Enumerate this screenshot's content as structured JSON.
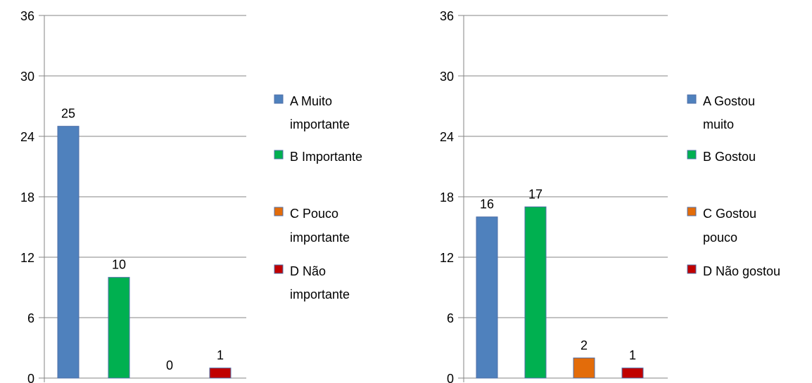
{
  "chart_data": [
    {
      "type": "bar",
      "categories": [
        "A",
        "B",
        "C",
        "D"
      ],
      "values": [
        25,
        10,
        0,
        1
      ],
      "colors": [
        "#4F81BD",
        "#00B050",
        "#E36C0A",
        "#C00000"
      ],
      "ylim": [
        0,
        36
      ],
      "yticks": [
        "0",
        "6",
        "12",
        "18",
        "24",
        "30",
        "36"
      ],
      "grid": true,
      "legend_position": "right",
      "legend": [
        {
          "lines": [
            "A  Muito",
            "importante"
          ]
        },
        {
          "lines": [
            "B  Importante"
          ]
        },
        {
          "lines": [
            "C  Pouco",
            "importante"
          ]
        },
        {
          "lines": [
            "D  Não",
            "importante"
          ]
        }
      ]
    },
    {
      "type": "bar",
      "categories": [
        "A",
        "B",
        "C",
        "D"
      ],
      "values": [
        16,
        17,
        2,
        1
      ],
      "colors": [
        "#4F81BD",
        "#00B050",
        "#E36C0A",
        "#C00000"
      ],
      "ylim": [
        0,
        36
      ],
      "yticks": [
        "0",
        "6",
        "12",
        "18",
        "24",
        "30",
        "36"
      ],
      "grid": true,
      "legend_position": "right",
      "legend": [
        {
          "lines": [
            "A  Gostou",
            "muito"
          ]
        },
        {
          "lines": [
            "B  Gostou"
          ]
        },
        {
          "lines": [
            "C  Gostou",
            "pouco"
          ]
        },
        {
          "lines": [
            "D  Não gostou"
          ]
        }
      ]
    }
  ]
}
